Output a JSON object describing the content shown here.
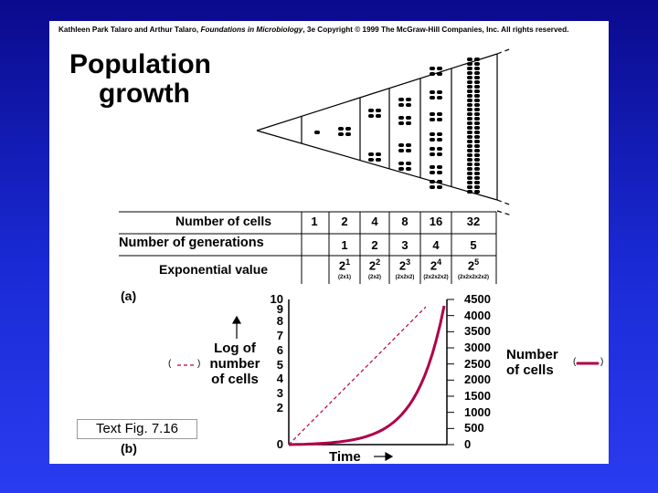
{
  "copyright": {
    "authors": "Kathleen Park Talaro and Arthur Talaro,",
    "book": "Foundations in Microbiology",
    "rest": ", 3e Copyright © 1999 The McGraw-Hill Companies, Inc.  All rights reserved."
  },
  "title": {
    "line1": "Population",
    "line2": "growth"
  },
  "table": {
    "row_labels": [
      "Number of cells",
      "Number of generations",
      "Exponential value"
    ],
    "cells": [
      "1",
      "2",
      "4",
      "8",
      "16",
      "32"
    ],
    "generations": [
      "1",
      "2",
      "3",
      "4",
      "5"
    ],
    "exponents": [
      {
        "base": "2",
        "power": "1",
        "expansion": "(2x1)"
      },
      {
        "base": "2",
        "power": "2",
        "expansion": "(2x2)"
      },
      {
        "base": "2",
        "power": "3",
        "expansion": "(2x2x2)"
      },
      {
        "base": "2",
        "power": "4",
        "expansion": "(2x2x2x2)"
      },
      {
        "base": "2",
        "power": "5",
        "expansion": "(2x2x2x2x2)"
      }
    ]
  },
  "panel_a_label": "(a)",
  "panel_b_label": "(b)",
  "chart_data": {
    "type": "line",
    "xlabel": "Time",
    "left_axis_label": [
      "Log of",
      "number",
      "of cells"
    ],
    "right_axis_label": [
      "Number",
      "of cells"
    ],
    "left_ticks": [
      "0",
      "2",
      "3",
      "4",
      "5",
      "6",
      "7",
      "8",
      "9",
      "10"
    ],
    "right_ticks": [
      "0",
      "500",
      "1000",
      "1500",
      "2000",
      "2500",
      "3000",
      "3500",
      "4000",
      "4500"
    ],
    "series": [
      {
        "style": "dashed",
        "color": "#b0004a"
      },
      {
        "style": "solid",
        "color": "#b0004a"
      }
    ]
  },
  "legend_marks": [
    "(",
    ")",
    "(",
    ")"
  ],
  "text_fig_label": "Text Fig. 7.16"
}
